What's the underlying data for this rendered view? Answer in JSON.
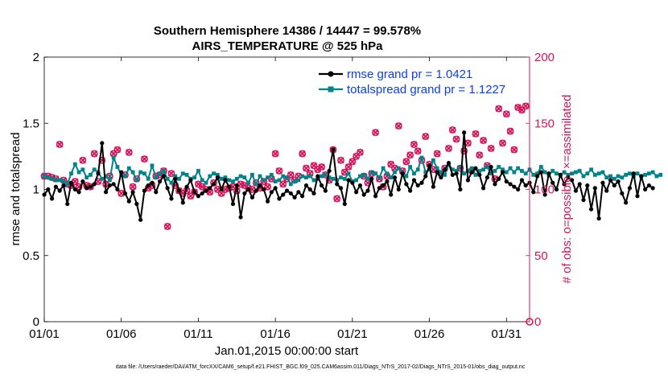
{
  "chart_data": {
    "type": "line",
    "title_line1": "Southern Hemisphere 14386 / 14447 = 99.578%",
    "title_line2": "AIRS_TEMPERATURE @ 525 hPa",
    "xlabel": "Jan.01,2015 00:00:00 start",
    "ylabel_left": "rmse and totalspread",
    "ylabel_right": "# of obs: o=possible; ×=assimilated",
    "footer": "data file: /Users/raeder/DAI/ATM_forcXX/CAM6_setup/f.e21.FHIST_BGC.f09_025.CAM6assim.011/Diags_NTrS_2017-02/Diags_NTrS_2015-01/obs_diag_output.nc",
    "xlim": [
      0,
      31.5
    ],
    "ylim_left": [
      0,
      2
    ],
    "ylim_right": [
      0,
      200
    ],
    "x_ticks": [
      {
        "value": 0,
        "label": "01/01"
      },
      {
        "value": 5,
        "label": "01/06"
      },
      {
        "value": 10,
        "label": "01/11"
      },
      {
        "value": 15,
        "label": "01/16"
      },
      {
        "value": 20,
        "label": "01/21"
      },
      {
        "value": 25,
        "label": "01/26"
      },
      {
        "value": 30,
        "label": "01/31"
      }
    ],
    "y_ticks_left": [
      {
        "value": 0,
        "label": "0"
      },
      {
        "value": 0.5,
        "label": "0.5"
      },
      {
        "value": 1,
        "label": "1"
      },
      {
        "value": 1.5,
        "label": "1.5"
      },
      {
        "value": 2,
        "label": "2"
      }
    ],
    "y_ticks_right": [
      {
        "value": 0,
        "label": "0"
      },
      {
        "value": 50,
        "label": "50"
      },
      {
        "value": 100,
        "label": "100"
      },
      {
        "value": 150,
        "label": "150"
      },
      {
        "value": 200,
        "label": "200"
      }
    ],
    "x_step": 0.25,
    "series": [
      {
        "name": "rmse grand pr = 1.0421",
        "color": "#000000",
        "values": [
          0.96,
          1.0,
          0.93,
          1.02,
          0.99,
          1.03,
          0.89,
          1.05,
          1.0,
          0.98,
          1.06,
          1.01,
          1.02,
          1.04,
          1.12,
          1.35,
          0.98,
          1.03,
          1.04,
          1.0,
          1.13,
          0.97,
          0.91,
          0.98,
          0.89,
          0.77,
          0.99,
          1.03,
          1.05,
          0.98,
          1.06,
          1.1,
          1.01,
          0.93,
          1.08,
          0.99,
          0.9,
          1.02,
          1.07,
          0.98,
          0.95,
          0.97,
          0.99,
          1.01,
          1.04,
          1.09,
          1.0,
          1.07,
          1.02,
          0.89,
          1.03,
          0.79,
          0.97,
          1.0,
          0.94,
          0.99,
          1.03,
          1.0,
          0.91,
          0.98,
          1.01,
          0.93,
          0.96,
          0.99,
          0.97,
          0.94,
          0.98,
          0.95,
          1.03,
          1.0,
          0.97,
          1.1,
          1.03,
          0.99,
          1.14,
          1.3,
          1.04,
          1.01,
          0.89,
          1.07,
          1.05,
          0.98,
          1.03,
          0.96,
          0.99,
          1.08,
          0.95,
          1.01,
          1.03,
          1.06,
          0.96,
          1.09,
          1.0,
          1.12,
          1.04,
          0.99,
          1.07,
          1.03,
          1.05,
          1.1,
          1.18,
          1.02,
          1.13,
          1.09,
          1.15,
          1.2,
          1.11,
          1.12,
          1.0,
          1.43,
          1.07,
          1.13,
          1.16,
          1.11,
          1.01,
          1.09,
          1.17,
          1.04,
          1.08,
          1.13,
          1.06,
          1.04,
          1.02,
          1.0,
          1.07,
          1.03,
          1.05,
          0.98,
          1.1,
          1.13,
          0.96,
          1.12,
          1.05,
          1.0,
          1.11,
          1.04,
          1.09,
          1.07,
          0.99,
          1.04,
          0.92,
          1.03,
          0.85,
          1.01,
          0.78,
          1.05,
          0.99,
          1.07,
          1.03,
          1.06,
          0.97,
          0.9,
          1.01,
          1.12,
          0.95,
          1.1,
          1.0,
          1.03,
          1.01
        ],
        "marker": "circle"
      },
      {
        "name": "totalspread grand pr = 1.1227",
        "color": "#00838a",
        "values": [
          1.1,
          1.09,
          1.08,
          1.07,
          1.07,
          1.06,
          1.04,
          1.12,
          1.19,
          1.13,
          1.15,
          1.09,
          1.11,
          1.15,
          1.13,
          1.08,
          1.1,
          1.07,
          1.24,
          1.17,
          1.11,
          1.1,
          1.16,
          1.13,
          1.07,
          1.13,
          1.12,
          1.08,
          1.18,
          1.09,
          1.12,
          1.14,
          1.08,
          1.05,
          1.1,
          1.08,
          1.12,
          1.11,
          1.08,
          1.09,
          1.14,
          1.07,
          1.05,
          1.1,
          1.12,
          1.11,
          1.08,
          1.09,
          1.07,
          1.06,
          1.08,
          1.1,
          1.09,
          1.05,
          1.11,
          1.04,
          1.1,
          1.07,
          1.09,
          1.11,
          1.06,
          1.07,
          1.1,
          1.09,
          1.04,
          1.06,
          1.07,
          1.1,
          1.09,
          1.1,
          1.07,
          1.08,
          1.1,
          1.11,
          1.09,
          1.08,
          1.07,
          1.09,
          1.08,
          1.12,
          1.06,
          1.07,
          1.1,
          1.11,
          1.08,
          1.13,
          1.12,
          1.09,
          1.16,
          1.12,
          1.09,
          1.13,
          1.16,
          1.13,
          1.1,
          1.17,
          1.12,
          1.15,
          1.24,
          1.13,
          1.15,
          1.22,
          1.16,
          1.13,
          1.11,
          1.19,
          1.15,
          1.14,
          1.17,
          1.12,
          1.14,
          1.16,
          1.11,
          1.14,
          1.15,
          1.17,
          1.12,
          1.14,
          1.17,
          1.15,
          1.13,
          1.16,
          1.13,
          1.16,
          1.14,
          1.12,
          1.15,
          1.11,
          1.12,
          1.17,
          1.13,
          1.11,
          1.14,
          1.12,
          1.11,
          1.13,
          1.11,
          1.12,
          1.13,
          1.14,
          1.1,
          1.12,
          1.15,
          1.11,
          1.12,
          1.13,
          1.09,
          1.1,
          1.08,
          1.1,
          1.09,
          1.11,
          1.12,
          1.1,
          1.12,
          1.1,
          1.11,
          1.12,
          1.13,
          1.1,
          1.11
        ],
        "marker": "square"
      }
    ],
    "obs_counts": {
      "name": "# of obs",
      "color": "#d6135a",
      "points": [
        {
          "x": 0.0,
          "y": 110
        },
        {
          "x": 0.25,
          "y": 110
        },
        {
          "x": 0.5,
          "y": 109
        },
        {
          "x": 0.75,
          "y": 108
        },
        {
          "x": 1.0,
          "y": 134
        },
        {
          "x": 1.25,
          "y": 107
        },
        {
          "x": 1.5,
          "y": 104
        },
        {
          "x": 1.75,
          "y": 103
        },
        {
          "x": 2.0,
          "y": 106
        },
        {
          "x": 2.25,
          "y": 102
        },
        {
          "x": 2.5,
          "y": 122
        },
        {
          "x": 2.75,
          "y": 103
        },
        {
          "x": 3.0,
          "y": 102
        },
        {
          "x": 3.25,
          "y": 127
        },
        {
          "x": 3.5,
          "y": 106
        },
        {
          "x": 3.75,
          "y": 122
        },
        {
          "x": 4.0,
          "y": 104
        },
        {
          "x": 4.25,
          "y": 110
        },
        {
          "x": 4.5,
          "y": 127
        },
        {
          "x": 4.75,
          "y": 130
        },
        {
          "x": 5.0,
          "y": 97
        },
        {
          "x": 5.25,
          "y": 111
        },
        {
          "x": 5.5,
          "y": 128
        },
        {
          "x": 5.75,
          "y": 102
        },
        {
          "x": 6.0,
          "y": 108
        },
        {
          "x": 6.5,
          "y": 123
        },
        {
          "x": 6.75,
          "y": 101
        },
        {
          "x": 7.0,
          "y": 103
        },
        {
          "x": 7.25,
          "y": 110
        },
        {
          "x": 7.5,
          "y": 111
        },
        {
          "x": 7.75,
          "y": 114
        },
        {
          "x": 8.0,
          "y": 72
        },
        {
          "x": 8.25,
          "y": 112
        },
        {
          "x": 8.5,
          "y": 103
        },
        {
          "x": 8.75,
          "y": 99
        },
        {
          "x": 9.0,
          "y": 97
        },
        {
          "x": 9.25,
          "y": 99
        },
        {
          "x": 9.5,
          "y": 95
        },
        {
          "x": 9.75,
          "y": 98
        },
        {
          "x": 10.0,
          "y": 104
        },
        {
          "x": 10.25,
          "y": 102
        },
        {
          "x": 10.5,
          "y": 100
        },
        {
          "x": 10.75,
          "y": 98
        },
        {
          "x": 11.0,
          "y": 105
        },
        {
          "x": 11.25,
          "y": 100
        },
        {
          "x": 11.5,
          "y": 97
        },
        {
          "x": 11.75,
          "y": 100
        },
        {
          "x": 12.0,
          "y": 101
        },
        {
          "x": 12.25,
          "y": 102
        },
        {
          "x": 12.5,
          "y": 99
        },
        {
          "x": 12.75,
          "y": 104
        },
        {
          "x": 13.0,
          "y": 103
        },
        {
          "x": 13.25,
          "y": 101
        },
        {
          "x": 13.5,
          "y": 100
        },
        {
          "x": 13.75,
          "y": 105
        },
        {
          "x": 14.0,
          "y": 101
        },
        {
          "x": 14.25,
          "y": 106
        },
        {
          "x": 14.5,
          "y": 102
        },
        {
          "x": 14.75,
          "y": 108
        },
        {
          "x": 15.0,
          "y": 127
        },
        {
          "x": 15.25,
          "y": 114
        },
        {
          "x": 15.5,
          "y": 104
        },
        {
          "x": 15.75,
          "y": 108
        },
        {
          "x": 16.0,
          "y": 111
        },
        {
          "x": 16.25,
          "y": 107
        },
        {
          "x": 16.5,
          "y": 110
        },
        {
          "x": 16.75,
          "y": 127
        },
        {
          "x": 17.0,
          "y": 116
        },
        {
          "x": 17.25,
          "y": 112
        },
        {
          "x": 17.5,
          "y": 118
        },
        {
          "x": 17.75,
          "y": 115
        },
        {
          "x": 18.0,
          "y": 117
        },
        {
          "x": 18.25,
          "y": 111
        },
        {
          "x": 18.5,
          "y": 107
        },
        {
          "x": 18.75,
          "y": 130
        },
        {
          "x": 19.0,
          "y": 93
        },
        {
          "x": 19.25,
          "y": 122
        },
        {
          "x": 19.5,
          "y": 113
        },
        {
          "x": 19.75,
          "y": 117
        },
        {
          "x": 20.0,
          "y": 121
        },
        {
          "x": 20.25,
          "y": 125
        },
        {
          "x": 20.5,
          "y": 128
        },
        {
          "x": 20.75,
          "y": 110
        },
        {
          "x": 21.0,
          "y": 105
        },
        {
          "x": 21.25,
          "y": 112
        },
        {
          "x": 21.5,
          "y": 143
        },
        {
          "x": 21.75,
          "y": 108
        },
        {
          "x": 22.0,
          "y": 102
        },
        {
          "x": 22.25,
          "y": 110
        },
        {
          "x": 22.5,
          "y": 119
        },
        {
          "x": 22.75,
          "y": 116
        },
        {
          "x": 23.0,
          "y": 148
        },
        {
          "x": 23.25,
          "y": 114
        },
        {
          "x": 23.5,
          "y": 121
        },
        {
          "x": 23.75,
          "y": 126
        },
        {
          "x": 24.0,
          "y": 134
        },
        {
          "x": 24.25,
          "y": 129
        },
        {
          "x": 24.5,
          "y": 122
        },
        {
          "x": 24.75,
          "y": 140
        },
        {
          "x": 25.0,
          "y": 119
        },
        {
          "x": 25.25,
          "y": 115
        },
        {
          "x": 25.5,
          "y": 127
        },
        {
          "x": 25.75,
          "y": 112
        },
        {
          "x": 26.0,
          "y": 116
        },
        {
          "x": 26.25,
          "y": 131
        },
        {
          "x": 26.5,
          "y": 145
        },
        {
          "x": 26.75,
          "y": 138
        },
        {
          "x": 27.0,
          "y": 116
        },
        {
          "x": 27.25,
          "y": 129
        },
        {
          "x": 27.5,
          "y": 135
        },
        {
          "x": 27.75,
          "y": 114
        },
        {
          "x": 28.0,
          "y": 142
        },
        {
          "x": 28.25,
          "y": 126
        },
        {
          "x": 28.5,
          "y": 137
        },
        {
          "x": 28.75,
          "y": 118
        },
        {
          "x": 29.0,
          "y": 131
        },
        {
          "x": 29.25,
          "y": 108
        },
        {
          "x": 29.5,
          "y": 161
        },
        {
          "x": 29.75,
          "y": 135
        },
        {
          "x": 30.0,
          "y": 157
        },
        {
          "x": 30.25,
          "y": 144
        },
        {
          "x": 30.5,
          "y": 130
        },
        {
          "x": 30.75,
          "y": 162
        },
        {
          "x": 31.0,
          "y": 160
        },
        {
          "x": 31.25,
          "y": 163
        },
        {
          "x": 31.5,
          "y": 0
        }
      ]
    },
    "legend_position": "top-right"
  }
}
